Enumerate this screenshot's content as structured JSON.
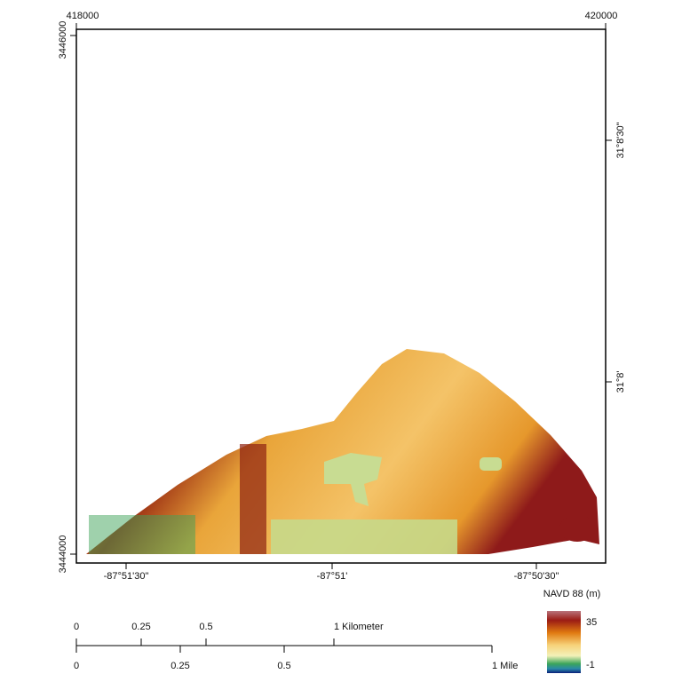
{
  "map": {
    "frame": {
      "top_labels": [
        "418000",
        "420000"
      ],
      "left_labels": [
        "3446000",
        "3444000"
      ],
      "right_labels": [
        "31°8'30\"",
        "31°8'"
      ],
      "bottom_labels": [
        "-87°51'30\"",
        "-87°51'",
        "-87°50'30\""
      ]
    },
    "legend": {
      "title": "NAVD 88 (m)",
      "max_label": "35",
      "min_label": "-1"
    },
    "scale_bar": {
      "kilometer_labels": [
        "0",
        "0.25",
        "0.5",
        "1 Kilometer"
      ],
      "mile_labels": [
        "0",
        "0.25",
        "0.5",
        "1 Mile"
      ]
    }
  }
}
